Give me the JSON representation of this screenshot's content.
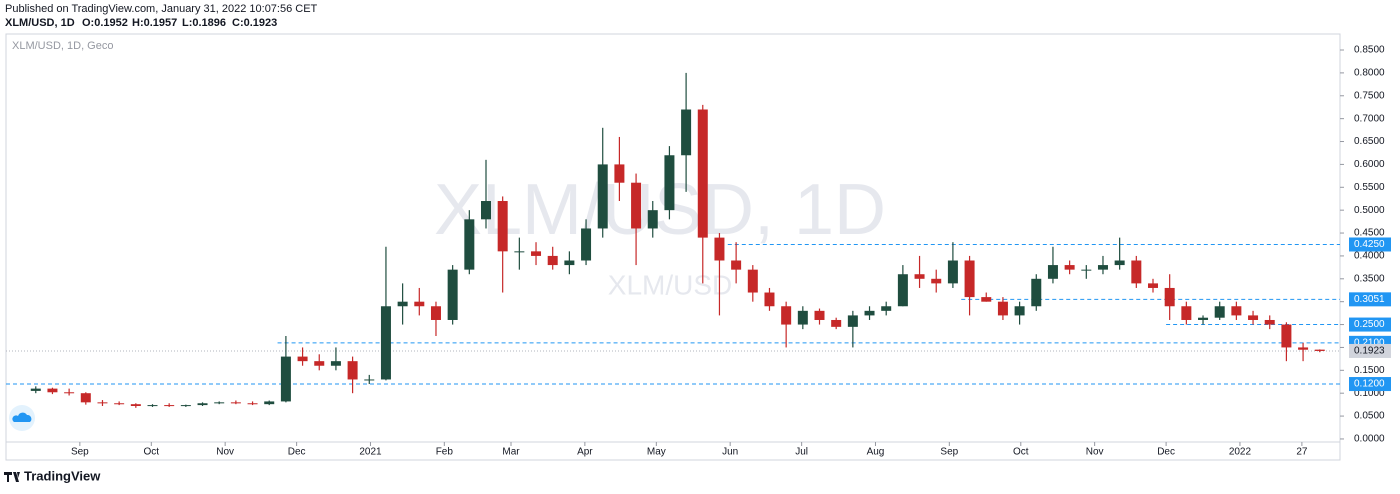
{
  "header": {
    "published": "Published on TradingView.com, January 31, 2022 10:07:56 CET",
    "symbol": "XLM/USD, 1D",
    "ohlc": [
      "O:0.1952",
      "H:0.1957",
      "L:0.1896",
      "C:0.1923"
    ]
  },
  "footer": {
    "brand": "TradingView"
  },
  "chart_data": {
    "type": "candlestick",
    "label": "XLM/USD, 1D, Geco",
    "watermark": "XLM/USD, 1D",
    "watermark_small": "XLM/USD",
    "up_color": "#1f4d3f",
    "down_color": "#c62828",
    "level_color": "#2196f3",
    "xlim": [
      "2020-08-01",
      "2022-02-12"
    ],
    "ylim": [
      -0.046,
      0.885
    ],
    "yticks": [
      {
        "value": 0,
        "label": "0.0000"
      },
      {
        "value": 0.05,
        "label": "0.0500"
      },
      {
        "value": 0.1,
        "label": "0.1000"
      },
      {
        "value": 0.15,
        "label": "0.1500"
      },
      {
        "value": 0.2,
        "label": "0.2000"
      },
      {
        "value": 0.25,
        "label": "0.2500"
      },
      {
        "value": 0.3,
        "label": "0.3000"
      },
      {
        "value": 0.35,
        "label": "0.3500"
      },
      {
        "value": 0.4,
        "label": "0.4000"
      },
      {
        "value": 0.45,
        "label": "0.4500"
      },
      {
        "value": 0.5,
        "label": "0.5000"
      },
      {
        "value": 0.55,
        "label": "0.5500"
      },
      {
        "value": 0.6,
        "label": "0.6000"
      },
      {
        "value": 0.65,
        "label": "0.6500"
      },
      {
        "value": 0.7,
        "label": "0.7000"
      },
      {
        "value": 0.75,
        "label": "0.7500"
      },
      {
        "value": 0.8,
        "label": "0.8000"
      },
      {
        "value": 0.85,
        "label": "0.8500"
      }
    ],
    "xticks": [
      {
        "value": "2020-09-01",
        "label": "Sep"
      },
      {
        "value": "2020-10-01",
        "label": "Oct"
      },
      {
        "value": "2020-11-01",
        "label": "Nov"
      },
      {
        "value": "2020-12-01",
        "label": "Dec"
      },
      {
        "value": "2021-01-01",
        "label": "2021"
      },
      {
        "value": "2021-02-01",
        "label": "Feb"
      },
      {
        "value": "2021-03-01",
        "label": "Mar"
      },
      {
        "value": "2021-04-01",
        "label": "Apr"
      },
      {
        "value": "2021-05-01",
        "label": "May"
      },
      {
        "value": "2021-06-01",
        "label": "Jun"
      },
      {
        "value": "2021-07-01",
        "label": "Jul"
      },
      {
        "value": "2021-08-01",
        "label": "Aug"
      },
      {
        "value": "2021-09-01",
        "label": "Sep"
      },
      {
        "value": "2021-10-01",
        "label": "Oct"
      },
      {
        "value": "2021-11-01",
        "label": "Nov"
      },
      {
        "value": "2021-12-01",
        "label": "Dec"
      },
      {
        "value": "2022-01-01",
        "label": "2022"
      },
      {
        "value": "2022-01-27",
        "label": "27"
      }
    ],
    "last_price": 0.1923,
    "levels": [
      {
        "value": 0.425,
        "label": "0.4250",
        "from": "2021-05-31"
      },
      {
        "value": 0.3051,
        "label": "0.3051",
        "from": "2021-09-06"
      },
      {
        "value": 0.25,
        "label": "0.2500",
        "from": "2021-12-01"
      },
      {
        "value": 0.21,
        "label": "0.2100",
        "from": "2020-11-23"
      },
      {
        "value": 0.12,
        "label": "0.1200",
        "from": "2020-08-01"
      }
    ],
    "x": [
      "2020-08-10",
      "2020-08-17",
      "2020-08-24",
      "2020-08-31",
      "2020-09-07",
      "2020-09-14",
      "2020-09-21",
      "2020-09-28",
      "2020-10-05",
      "2020-10-12",
      "2020-10-19",
      "2020-10-26",
      "2020-11-02",
      "2020-11-09",
      "2020-11-16",
      "2020-11-23",
      "2020-11-30",
      "2020-12-07",
      "2020-12-14",
      "2020-12-21",
      "2020-12-28",
      "2021-01-04",
      "2021-01-11",
      "2021-01-18",
      "2021-01-25",
      "2021-02-01",
      "2021-02-08",
      "2021-02-15",
      "2021-02-22",
      "2021-03-01",
      "2021-03-08",
      "2021-03-15",
      "2021-03-22",
      "2021-03-29",
      "2021-04-05",
      "2021-04-12",
      "2021-04-19",
      "2021-04-26",
      "2021-05-03",
      "2021-05-10",
      "2021-05-17",
      "2021-05-24",
      "2021-05-31",
      "2021-06-07",
      "2021-06-14",
      "2021-06-21",
      "2021-06-28",
      "2021-07-05",
      "2021-07-12",
      "2021-07-19",
      "2021-07-26",
      "2021-08-02",
      "2021-08-09",
      "2021-08-16",
      "2021-08-23",
      "2021-08-30",
      "2021-09-06",
      "2021-09-13",
      "2021-09-20",
      "2021-09-27",
      "2021-10-04",
      "2021-10-11",
      "2021-10-18",
      "2021-10-25",
      "2021-11-01",
      "2021-11-08",
      "2021-11-15",
      "2021-11-22",
      "2021-11-29",
      "2021-12-06",
      "2021-12-13",
      "2021-12-20",
      "2021-12-27",
      "2022-01-03",
      "2022-01-10",
      "2022-01-17",
      "2022-01-24",
      "2022-01-31"
    ],
    "ohlc": [
      [
        0.105,
        0.115,
        0.1,
        0.11
      ],
      [
        0.11,
        0.112,
        0.098,
        0.102
      ],
      [
        0.102,
        0.11,
        0.095,
        0.1
      ],
      [
        0.1,
        0.102,
        0.075,
        0.08
      ],
      [
        0.08,
        0.085,
        0.072,
        0.078
      ],
      [
        0.078,
        0.082,
        0.074,
        0.076
      ],
      [
        0.076,
        0.078,
        0.068,
        0.072
      ],
      [
        0.072,
        0.076,
        0.07,
        0.074
      ],
      [
        0.074,
        0.078,
        0.07,
        0.072
      ],
      [
        0.072,
        0.075,
        0.07,
        0.074
      ],
      [
        0.074,
        0.08,
        0.072,
        0.078
      ],
      [
        0.078,
        0.082,
        0.076,
        0.08
      ],
      [
        0.08,
        0.084,
        0.076,
        0.078
      ],
      [
        0.078,
        0.082,
        0.074,
        0.076
      ],
      [
        0.076,
        0.084,
        0.074,
        0.082
      ],
      [
        0.082,
        0.225,
        0.08,
        0.18
      ],
      [
        0.18,
        0.2,
        0.16,
        0.17
      ],
      [
        0.17,
        0.185,
        0.15,
        0.16
      ],
      [
        0.16,
        0.2,
        0.15,
        0.17
      ],
      [
        0.17,
        0.18,
        0.1,
        0.13
      ],
      [
        0.13,
        0.14,
        0.12,
        0.13
      ],
      [
        0.13,
        0.42,
        0.128,
        0.29
      ],
      [
        0.29,
        0.34,
        0.25,
        0.3
      ],
      [
        0.3,
        0.33,
        0.27,
        0.29
      ],
      [
        0.29,
        0.3,
        0.225,
        0.26
      ],
      [
        0.26,
        0.38,
        0.25,
        0.37
      ],
      [
        0.37,
        0.5,
        0.36,
        0.48
      ],
      [
        0.48,
        0.61,
        0.46,
        0.52
      ],
      [
        0.52,
        0.53,
        0.32,
        0.41
      ],
      [
        0.41,
        0.44,
        0.37,
        0.41
      ],
      [
        0.41,
        0.43,
        0.38,
        0.4
      ],
      [
        0.4,
        0.42,
        0.37,
        0.38
      ],
      [
        0.38,
        0.41,
        0.36,
        0.39
      ],
      [
        0.39,
        0.48,
        0.38,
        0.46
      ],
      [
        0.46,
        0.68,
        0.44,
        0.6
      ],
      [
        0.6,
        0.66,
        0.52,
        0.56
      ],
      [
        0.56,
        0.58,
        0.38,
        0.46
      ],
      [
        0.46,
        0.52,
        0.44,
        0.5
      ],
      [
        0.5,
        0.64,
        0.48,
        0.62
      ],
      [
        0.62,
        0.8,
        0.54,
        0.72
      ],
      [
        0.72,
        0.73,
        0.34,
        0.44
      ],
      [
        0.44,
        0.45,
        0.27,
        0.39
      ],
      [
        0.39,
        0.43,
        0.34,
        0.37
      ],
      [
        0.37,
        0.38,
        0.3,
        0.32
      ],
      [
        0.32,
        0.33,
        0.28,
        0.29
      ],
      [
        0.29,
        0.3,
        0.2,
        0.25
      ],
      [
        0.25,
        0.29,
        0.24,
        0.28
      ],
      [
        0.28,
        0.285,
        0.25,
        0.26
      ],
      [
        0.26,
        0.265,
        0.24,
        0.245
      ],
      [
        0.245,
        0.28,
        0.2,
        0.27
      ],
      [
        0.27,
        0.29,
        0.26,
        0.28
      ],
      [
        0.28,
        0.3,
        0.27,
        0.29
      ],
      [
        0.29,
        0.38,
        0.29,
        0.36
      ],
      [
        0.36,
        0.4,
        0.33,
        0.35
      ],
      [
        0.35,
        0.37,
        0.32,
        0.34
      ],
      [
        0.34,
        0.43,
        0.33,
        0.39
      ],
      [
        0.39,
        0.4,
        0.27,
        0.31
      ],
      [
        0.31,
        0.32,
        0.3,
        0.3
      ],
      [
        0.3,
        0.31,
        0.26,
        0.27
      ],
      [
        0.27,
        0.3,
        0.25,
        0.29
      ],
      [
        0.29,
        0.36,
        0.28,
        0.35
      ],
      [
        0.35,
        0.42,
        0.34,
        0.38
      ],
      [
        0.38,
        0.39,
        0.36,
        0.37
      ],
      [
        0.37,
        0.38,
        0.35,
        0.37
      ],
      [
        0.37,
        0.4,
        0.36,
        0.38
      ],
      [
        0.38,
        0.44,
        0.37,
        0.39
      ],
      [
        0.39,
        0.4,
        0.33,
        0.34
      ],
      [
        0.34,
        0.35,
        0.32,
        0.33
      ],
      [
        0.33,
        0.36,
        0.26,
        0.29
      ],
      [
        0.29,
        0.3,
        0.25,
        0.26
      ],
      [
        0.26,
        0.27,
        0.25,
        0.265
      ],
      [
        0.265,
        0.3,
        0.26,
        0.29
      ],
      [
        0.29,
        0.3,
        0.26,
        0.27
      ],
      [
        0.27,
        0.28,
        0.25,
        0.26
      ],
      [
        0.26,
        0.27,
        0.24,
        0.25
      ],
      [
        0.25,
        0.255,
        0.17,
        0.2
      ],
      [
        0.2,
        0.21,
        0.17,
        0.195
      ],
      [
        0.1952,
        0.1957,
        0.1896,
        0.1923
      ]
    ]
  }
}
